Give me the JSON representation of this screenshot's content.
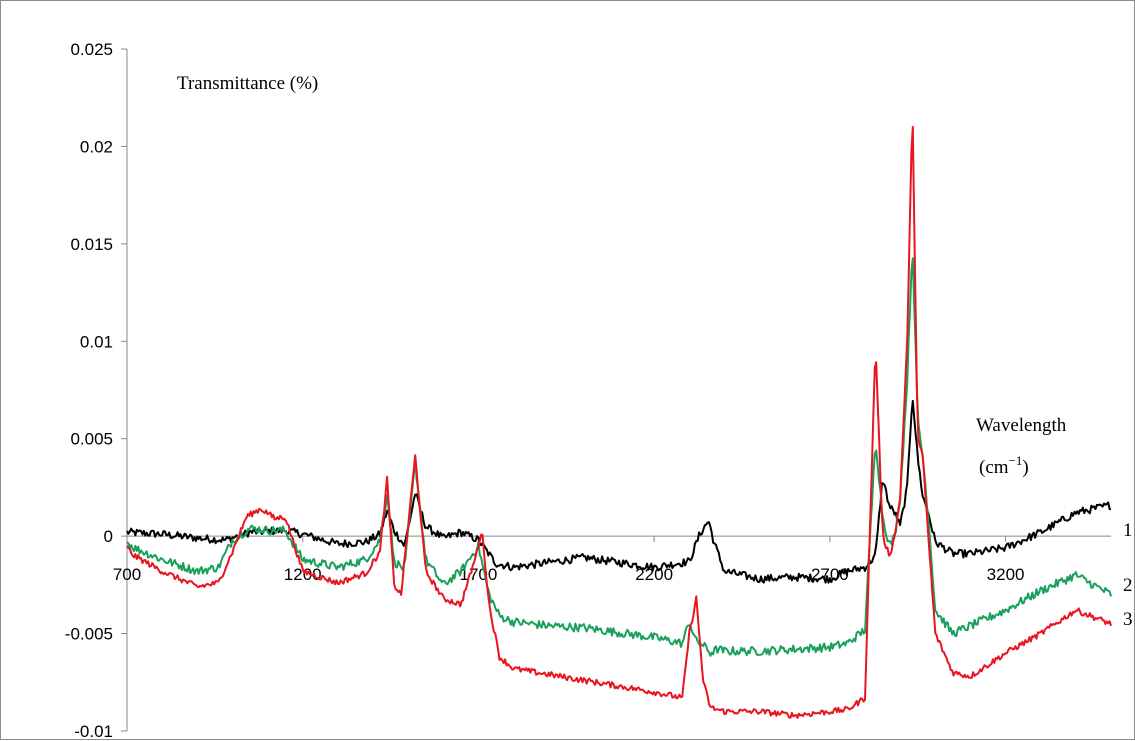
{
  "chart_data": {
    "type": "line",
    "ylabel": "Transmittance (%)",
    "xlabel_line1": "Wavelength",
    "xlabel_unit_base": "(cm",
    "xlabel_unit_exp": "−1",
    "xlabel_unit_close": ")",
    "xlim": [
      700,
      3500
    ],
    "ylim": [
      -0.01,
      0.025
    ],
    "x_ticks": [
      700,
      1200,
      1700,
      2200,
      2700,
      3200
    ],
    "x_tick_labels": [
      "700",
      "1200",
      "1700",
      "2200",
      "2700",
      "3200"
    ],
    "y_ticks": [
      -0.01,
      -0.005,
      0,
      0.005,
      0.01,
      0.015,
      0.02,
      0.025
    ],
    "y_tick_labels": [
      "-0.01",
      "-0.005",
      "0",
      "0.005",
      "0.01",
      "0.015",
      "0.02",
      "0.025"
    ],
    "grid": false,
    "series": [
      {
        "name": "1",
        "color": "#000000",
        "noise": 0.0002,
        "x": [
          700,
          800,
          900,
          980,
          1050,
          1150,
          1200,
          1300,
          1380,
          1420,
          1440,
          1460,
          1490,
          1520,
          1550,
          1600,
          1650,
          1700,
          1750,
          1800,
          2000,
          2200,
          2300,
          2330,
          2355,
          2370,
          2400,
          2500,
          2600,
          2700,
          2750,
          2800,
          2830,
          2850,
          2870,
          2885,
          2900,
          2920,
          2935,
          2950,
          2965,
          2980,
          3000,
          3050,
          3100,
          3200,
          3300,
          3400,
          3500
        ],
        "y": [
          0.0002,
          0.0001,
          -0.0001,
          -0.0002,
          0.0002,
          0.0003,
          0.0001,
          -0.0004,
          -0.0003,
          0.0001,
          0.0013,
          0.0003,
          -0.0005,
          0.0022,
          0.0005,
          -0.0001,
          0.0002,
          -0.0002,
          -0.0014,
          -0.0016,
          -0.0011,
          -0.0016,
          -0.0013,
          0.0001,
          0.0008,
          -0.0003,
          -0.0018,
          -0.0022,
          -0.0021,
          -0.0022,
          -0.0018,
          -0.0016,
          -0.001,
          0.003,
          0.0015,
          0.0012,
          0.0005,
          0.0025,
          0.0073,
          0.004,
          0.002,
          0.0012,
          -0.0003,
          -0.0009,
          -0.0009,
          -0.0006,
          0.0002,
          0.0012,
          0.0016
        ]
      },
      {
        "name": "2",
        "color": "#1aa05a",
        "noise": 0.00022,
        "x": [
          700,
          720,
          800,
          900,
          960,
          1000,
          1050,
          1100,
          1150,
          1200,
          1300,
          1380,
          1420,
          1440,
          1460,
          1490,
          1520,
          1550,
          1600,
          1650,
          1700,
          1730,
          1760,
          1800,
          1900,
          2000,
          2200,
          2280,
          2300,
          2320,
          2340,
          2360,
          2380,
          2400,
          2500,
          2600,
          2700,
          2750,
          2800,
          2830,
          2850,
          2870,
          2885,
          2900,
          2920,
          2935,
          2950,
          2965,
          2980,
          3000,
          3050,
          3100,
          3200,
          3300,
          3400,
          3500
        ],
        "y": [
          -0.0003,
          -0.0006,
          -0.0012,
          -0.0018,
          -0.0016,
          -0.0002,
          0.0004,
          0.0003,
          0.0003,
          -0.0012,
          -0.0016,
          -0.0012,
          -0.0002,
          0.0022,
          -0.0013,
          -0.0017,
          0.0038,
          -0.0012,
          -0.0025,
          -0.0018,
          -0.0005,
          -0.003,
          -0.0041,
          -0.0044,
          -0.0046,
          -0.0047,
          -0.0052,
          -0.0055,
          -0.0044,
          -0.0054,
          -0.0056,
          -0.006,
          -0.0058,
          -0.0059,
          -0.0059,
          -0.0058,
          -0.0057,
          -0.0055,
          -0.0048,
          0.005,
          0.001,
          -0.0005,
          0.0,
          0.002,
          0.008,
          0.015,
          0.006,
          0.004,
          0.001,
          -0.0038,
          -0.005,
          -0.0046,
          -0.0038,
          -0.0028,
          -0.002,
          -0.003
        ]
      },
      {
        "name": "3",
        "color": "#e8141e",
        "noise": 0.00015,
        "x": [
          700,
          720,
          800,
          900,
          960,
          1000,
          1040,
          1080,
          1100,
          1120,
          1150,
          1200,
          1300,
          1380,
          1420,
          1440,
          1460,
          1480,
          1520,
          1550,
          1600,
          1650,
          1690,
          1710,
          1730,
          1760,
          1800,
          2000,
          2200,
          2280,
          2300,
          2320,
          2340,
          2360,
          2380,
          2400,
          2500,
          2600,
          2700,
          2750,
          2800,
          2830,
          2850,
          2870,
          2885,
          2900,
          2920,
          2935,
          2950,
          2965,
          2980,
          3000,
          3050,
          3100,
          3200,
          3300,
          3400,
          3500
        ],
        "y": [
          -0.0006,
          -0.001,
          -0.0018,
          -0.0026,
          -0.0024,
          -0.0008,
          0.001,
          0.0014,
          0.0012,
          0.0009,
          0.001,
          -0.0018,
          -0.0024,
          -0.0019,
          -0.0008,
          0.0029,
          -0.0025,
          -0.003,
          0.0041,
          -0.0018,
          -0.0032,
          -0.0035,
          -0.0012,
          0.0003,
          -0.0035,
          -0.0062,
          -0.0068,
          -0.0074,
          -0.008,
          -0.0083,
          -0.005,
          -0.0032,
          -0.0075,
          -0.0088,
          -0.0089,
          -0.009,
          -0.009,
          -0.0092,
          -0.009,
          -0.0089,
          -0.0083,
          0.0099,
          0.0,
          -0.001,
          0.0,
          0.002,
          0.01,
          0.022,
          0.005,
          0.004,
          0.0,
          -0.005,
          -0.007,
          -0.0072,
          -0.006,
          -0.005,
          -0.0038,
          -0.0045
        ]
      }
    ]
  }
}
